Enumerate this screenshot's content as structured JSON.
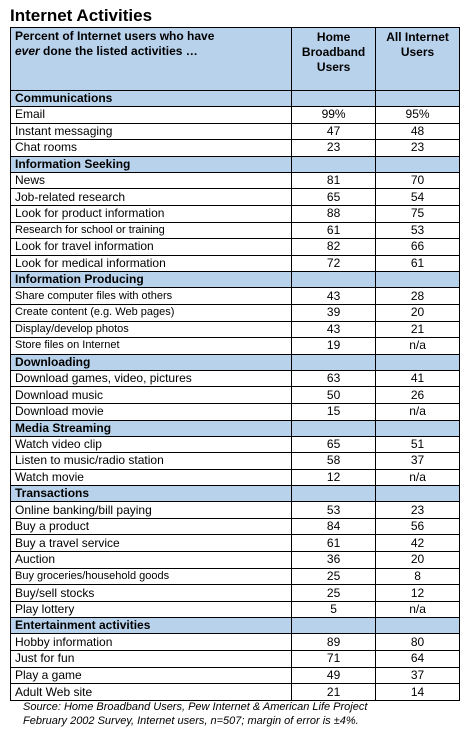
{
  "title": "Internet Activities",
  "header": {
    "description_part1": "Percent of Internet users who have",
    "description_ever": "ever",
    "description_part2": "done the listed activities …",
    "col_home_broadband": "Home Broadband Users",
    "col_all_internet": "All Internet Users"
  },
  "sections": [
    {
      "name": "Communications",
      "rows": [
        {
          "label": "Email",
          "home": "99%",
          "all": "95%"
        },
        {
          "label": "Instant messaging",
          "home": "47",
          "all": "48"
        },
        {
          "label": "Chat rooms",
          "home": "23",
          "all": "23"
        }
      ]
    },
    {
      "name": "Information Seeking",
      "rows": [
        {
          "label": "News",
          "home": "81",
          "all": "70"
        },
        {
          "label": "Job-related research",
          "home": "65",
          "all": "54"
        },
        {
          "label": "Look for product information",
          "home": "88",
          "all": "75"
        },
        {
          "label": "Research for school or training",
          "home": "61",
          "all": "53"
        },
        {
          "label": "Look for travel information",
          "home": "82",
          "all": "66"
        },
        {
          "label": "Look for medical information",
          "home": "72",
          "all": "61"
        }
      ]
    },
    {
      "name": "Information Producing",
      "rows": [
        {
          "label": "Share computer files with others",
          "home": "43",
          "all": "28"
        },
        {
          "label": "Create content (e.g. Web pages)",
          "home": "39",
          "all": "20"
        },
        {
          "label": "Display/develop photos",
          "home": "43",
          "all": "21"
        },
        {
          "label": "Store files on Internet",
          "home": "19",
          "all": "n/a"
        }
      ]
    },
    {
      "name": "Downloading",
      "rows": [
        {
          "label": "Download games, video, pictures",
          "home": "63",
          "all": "41"
        },
        {
          "label": "Download music",
          "home": "50",
          "all": "26"
        },
        {
          "label": "Download movie",
          "home": "15",
          "all": "n/a"
        }
      ]
    },
    {
      "name": "Media Streaming",
      "rows": [
        {
          "label": "Watch video clip",
          "home": "65",
          "all": "51"
        },
        {
          "label": "Listen to music/radio station",
          "home": "58",
          "all": "37"
        },
        {
          "label": "Watch movie",
          "home": "12",
          "all": "n/a"
        }
      ]
    },
    {
      "name": "Transactions",
      "rows": [
        {
          "label": "Online banking/bill paying",
          "home": "53",
          "all": "23"
        },
        {
          "label": "Buy a product",
          "home": "84",
          "all": "56"
        },
        {
          "label": "Buy a travel service",
          "home": "61",
          "all": "42"
        },
        {
          "label": "Auction",
          "home": "36",
          "all": "20"
        },
        {
          "label": "Buy groceries/household goods",
          "home": "25",
          "all": "8"
        },
        {
          "label": "Buy/sell stocks",
          "home": "25",
          "all": "12"
        },
        {
          "label": "Play lottery",
          "home": "5",
          "all": "n/a"
        }
      ]
    },
    {
      "name": "Entertainment activities",
      "rows": [
        {
          "label": "Hobby information",
          "home": "89",
          "all": "80"
        },
        {
          "label": "Just for fun",
          "home": "71",
          "all": "64"
        },
        {
          "label": "Play a game",
          "home": "49",
          "all": "37"
        },
        {
          "label": "Adult Web site",
          "home": "21",
          "all": "14"
        }
      ]
    }
  ],
  "source": {
    "line1": "Source: Home Broadband Users, Pew Internet & American Life Project",
    "line2": "February 2002 Survey, Internet users, n=507; margin of error is ±4%."
  }
}
